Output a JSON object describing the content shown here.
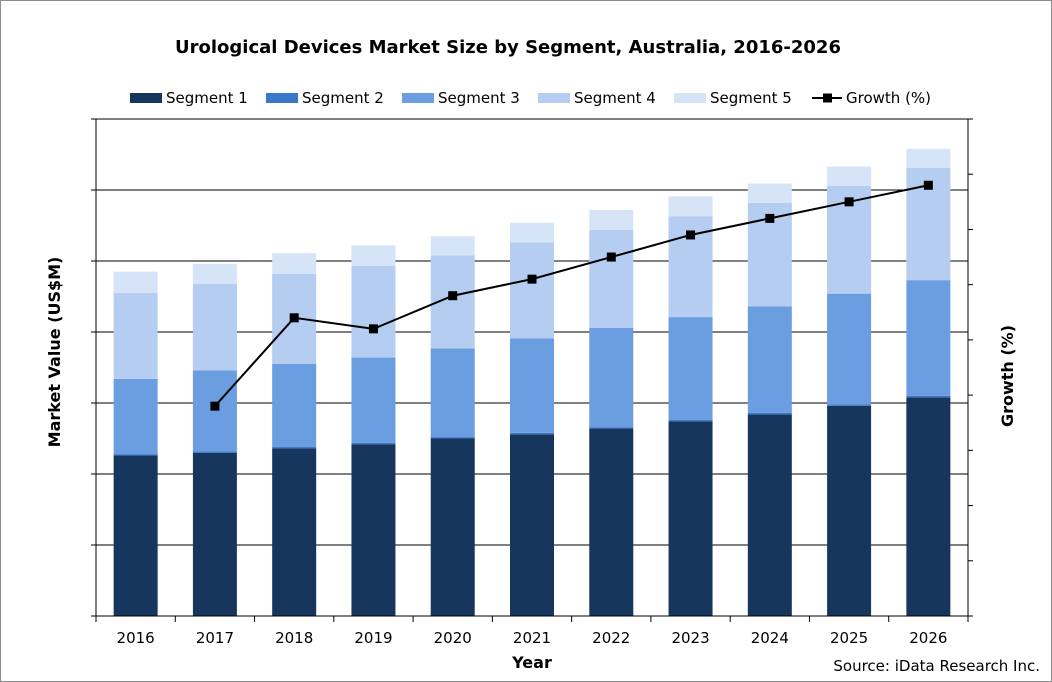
{
  "chart_data": {
    "type": "bar",
    "stacked": true,
    "title": "Urological Devices Market Size by Segment, Australia, 2016-2026",
    "xlabel": "Year",
    "ylabel": "Market Value (US$M)",
    "y2label": "Growth (%)",
    "source": "Source: iData Research Inc.",
    "legend_position": "top",
    "grid": true,
    "categories": [
      "2016",
      "2017",
      "2018",
      "2019",
      "2020",
      "2021",
      "2022",
      "2023",
      "2024",
      "2025",
      "2026"
    ],
    "ylim": [
      0,
      7
    ],
    "y2lim": [
      0,
      9
    ],
    "series": [
      {
        "name": "Segment 1",
        "kind": "bar",
        "color": "#17365d",
        "values": [
          2.26,
          2.3,
          2.36,
          2.42,
          2.5,
          2.56,
          2.64,
          2.74,
          2.84,
          2.96,
          3.08
        ]
      },
      {
        "name": "Segment 2",
        "kind": "bar",
        "color": "#3b78c9",
        "values": [
          0.02,
          0.02,
          0.02,
          0.02,
          0.02,
          0.02,
          0.02,
          0.02,
          0.02,
          0.02,
          0.02
        ]
      },
      {
        "name": "Segment 3",
        "kind": "bar",
        "color": "#6a9ee0",
        "values": [
          1.06,
          1.14,
          1.17,
          1.2,
          1.25,
          1.33,
          1.4,
          1.45,
          1.5,
          1.56,
          1.63
        ]
      },
      {
        "name": "Segment 4",
        "kind": "bar",
        "color": "#b4cdf0",
        "values": [
          1.21,
          1.22,
          1.27,
          1.29,
          1.31,
          1.35,
          1.38,
          1.42,
          1.46,
          1.52,
          1.58
        ]
      },
      {
        "name": "Segment 5",
        "kind": "bar",
        "color": "#d6e4f7",
        "values": [
          0.3,
          0.28,
          0.29,
          0.29,
          0.27,
          0.28,
          0.28,
          0.28,
          0.27,
          0.27,
          0.27
        ]
      },
      {
        "name": "Growth (%)",
        "kind": "line",
        "axis": "right",
        "color": "#000000",
        "values": [
          null,
          3.8,
          5.4,
          5.2,
          5.8,
          6.1,
          6.5,
          6.9,
          7.2,
          7.5,
          7.8
        ]
      }
    ]
  }
}
